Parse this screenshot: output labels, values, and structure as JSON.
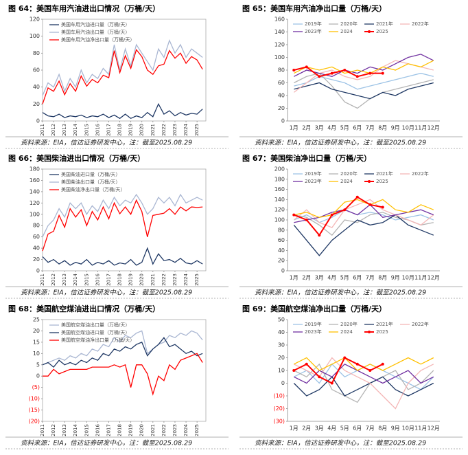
{
  "chart_data": [
    {
      "type": "line",
      "title": "图 64：美国车用汽油进出口情况（万桶/天）",
      "source": "资料来源：EIA，信达证券研发中心，注：截至2025.08.29",
      "x": [
        2011,
        2011.5,
        2012,
        2012.5,
        2013,
        2013.5,
        2014,
        2014.5,
        2015,
        2015.5,
        2016,
        2016.5,
        2017,
        2017.5,
        2018,
        2018.5,
        2019,
        2019.5,
        2020,
        2020.5,
        2021,
        2021.5,
        2022,
        2022.5,
        2023,
        2023.5,
        2024,
        2024.5,
        2025,
        2025.5
      ],
      "xlim": [
        2011,
        2025.8
      ],
      "xticks": [
        2011,
        2012,
        2013,
        2014,
        2015,
        2016,
        2017,
        2018,
        2019,
        2020,
        2021,
        2022,
        2023,
        2024,
        2025
      ],
      "ylim": [
        0,
        120
      ],
      "yticks": [
        0,
        20,
        40,
        60,
        80,
        100,
        120
      ],
      "series": [
        {
          "name": "美国车用汽油进口量（万桶/天）",
          "color": "#1f3864",
          "values": [
            10,
            6,
            5,
            8,
            4,
            6,
            5,
            7,
            4,
            6,
            5,
            8,
            4,
            7,
            3,
            8,
            3,
            6,
            4,
            10,
            5,
            20,
            8,
            12,
            6,
            10,
            7,
            9,
            8,
            14
          ]
        },
        {
          "name": "美国车用汽油出口量（万桶/天）",
          "color": "#a9b6d2",
          "values": [
            30,
            45,
            40,
            55,
            35,
            50,
            40,
            60,
            45,
            55,
            50,
            62,
            55,
            90,
            60,
            85,
            65,
            90,
            80,
            70,
            60,
            85,
            75,
            95,
            80,
            90,
            75,
            85,
            80,
            75
          ]
        },
        {
          "name": "美国车用汽油净出口量（万桶/天）",
          "color": "#ff0000",
          "values": [
            20,
            39,
            35,
            47,
            31,
            44,
            35,
            53,
            41,
            49,
            45,
            54,
            51,
            83,
            57,
            77,
            62,
            84,
            76,
            60,
            55,
            65,
            67,
            83,
            74,
            80,
            68,
            76,
            72,
            61
          ]
        }
      ]
    },
    {
      "type": "line",
      "title": "图 65：美国车用汽油净出口量（万桶/天）",
      "source": "资料来源：EIA，信达证券研发中心，注：截至2025.08.29",
      "categories": [
        "1月",
        "2月",
        "3月",
        "4月",
        "5月",
        "6月",
        "7月",
        "8月",
        "9月",
        "10月",
        "11月",
        "12月"
      ],
      "ylim": [
        0,
        160
      ],
      "yticks": [
        0,
        20,
        40,
        60,
        80,
        100,
        120,
        140,
        160
      ],
      "series": [
        {
          "name": "2019年",
          "color": "#9dc3e6",
          "values": [
            55,
            60,
            70,
            65,
            60,
            50,
            55,
            60,
            65,
            70,
            75,
            70
          ]
        },
        {
          "name": "2020年",
          "color": "#b4b4b4",
          "values": [
            60,
            70,
            75,
            55,
            30,
            20,
            35,
            45,
            50,
            55,
            60,
            65
          ]
        },
        {
          "name": "2021年",
          "color": "#1f3864",
          "values": [
            50,
            55,
            60,
            50,
            45,
            40,
            35,
            45,
            40,
            50,
            55,
            60
          ]
        },
        {
          "name": "2022年",
          "color": "#f4b6b6",
          "values": [
            45,
            60,
            75,
            80,
            70,
            65,
            70,
            85,
            95,
            90,
            85,
            80
          ]
        },
        {
          "name": "2023年",
          "color": "#7030a0",
          "values": [
            70,
            80,
            75,
            70,
            80,
            75,
            85,
            80,
            90,
            100,
            105,
            95
          ]
        },
        {
          "name": "2024",
          "color": "#ffc000",
          "values": [
            75,
            85,
            80,
            85,
            75,
            80,
            75,
            85,
            80,
            90,
            85,
            95
          ]
        },
        {
          "name": "2025",
          "color": "#ff0000",
          "marker": true,
          "values": [
            80,
            85,
            70,
            75,
            80,
            70,
            75,
            75,
            null,
            null,
            null,
            null
          ]
        }
      ]
    },
    {
      "type": "line",
      "title": "图 66：美国柴油进出口情况（万桶/天）",
      "source": "资料来源：EIA，信达证券研发中心，注：截至2025.08.29",
      "x": [
        2011,
        2011.5,
        2012,
        2012.5,
        2013,
        2013.5,
        2014,
        2014.5,
        2015,
        2015.5,
        2016,
        2016.5,
        2017,
        2017.5,
        2018,
        2018.5,
        2019,
        2019.5,
        2020,
        2020.5,
        2021,
        2021.5,
        2022,
        2022.5,
        2023,
        2023.5,
        2024,
        2024.5,
        2025,
        2025.5
      ],
      "xlim": [
        2011,
        2025.8
      ],
      "xticks": [
        2011,
        2012,
        2013,
        2014,
        2015,
        2016,
        2017,
        2018,
        2019,
        2020,
        2021,
        2022,
        2023,
        2024,
        2025
      ],
      "ylim": [
        0,
        180
      ],
      "yticks": [
        0,
        20,
        40,
        60,
        80,
        100,
        120,
        140,
        160,
        180
      ],
      "series": [
        {
          "name": "美国柴油进口量（万桶/天）",
          "color": "#1f3864",
          "values": [
            25,
            15,
            20,
            12,
            18,
            10,
            15,
            12,
            20,
            10,
            15,
            12,
            18,
            10,
            14,
            12,
            20,
            10,
            15,
            40,
            12,
            30,
            18,
            20,
            15,
            22,
            14,
            12,
            18,
            12
          ]
        },
        {
          "name": "美国柴油出口量（万桶/天）",
          "color": "#a9b6d2",
          "values": [
            60,
            80,
            90,
            110,
            95,
            120,
            110,
            120,
            100,
            115,
            105,
            125,
            110,
            130,
            115,
            125,
            120,
            135,
            120,
            100,
            110,
            130,
            120,
            130,
            115,
            135,
            120,
            125,
            130,
            125
          ]
        },
        {
          "name": "美国柴油净出口量（万桶/天）",
          "color": "#ff0000",
          "values": [
            35,
            65,
            70,
            98,
            77,
            110,
            95,
            108,
            80,
            105,
            90,
            113,
            92,
            120,
            101,
            113,
            100,
            125,
            105,
            60,
            98,
            100,
            102,
            110,
            100,
            113,
            106,
            113,
            112,
            113
          ]
        }
      ]
    },
    {
      "type": "line",
      "title": "图 67：美国柴油净出口量（万桶/天）",
      "source": "资料来源：EIA，信达证券研发中心，注：截至2025.08.29",
      "categories": [
        "1月",
        "2月",
        "3月",
        "4月",
        "5月",
        "6月",
        "7月",
        "8月",
        "9月",
        "10月",
        "11月",
        "12月"
      ],
      "ylim": [
        0,
        200
      ],
      "yticks": [
        0,
        20,
        40,
        60,
        80,
        100,
        120,
        140,
        160,
        180,
        200
      ],
      "series": [
        {
          "name": "2019年",
          "color": "#9dc3e6",
          "values": [
            100,
            110,
            95,
            105,
            120,
            110,
            115,
            110,
            100,
            105,
            110,
            100
          ]
        },
        {
          "name": "2020年",
          "color": "#b4b4b4",
          "values": [
            110,
            105,
            90,
            70,
            100,
            95,
            110,
            115,
            105,
            100,
            90,
            95
          ]
        },
        {
          "name": "2021年",
          "color": "#1f3864",
          "values": [
            90,
            60,
            30,
            60,
            80,
            100,
            90,
            95,
            110,
            90,
            80,
            70
          ]
        },
        {
          "name": "2022年",
          "color": "#f4b6b6",
          "values": [
            100,
            120,
            95,
            85,
            120,
            130,
            140,
            120,
            110,
            100,
            90,
            110
          ]
        },
        {
          "name": "2023年",
          "color": "#7030a0",
          "values": [
            95,
            100,
            105,
            115,
            120,
            110,
            130,
            105,
            110,
            115,
            120,
            110
          ]
        },
        {
          "name": "2024",
          "color": "#ffc000",
          "values": [
            110,
            115,
            105,
            110,
            135,
            140,
            130,
            140,
            120,
            115,
            130,
            120
          ]
        },
        {
          "name": "2025",
          "color": "#ff0000",
          "marker": true,
          "values": [
            110,
            100,
            70,
            110,
            120,
            145,
            130,
            125,
            null,
            null,
            null,
            null
          ]
        }
      ]
    },
    {
      "type": "line",
      "title": "图 68：美国航空煤油进出口情况（万桶/天）",
      "source": "资料来源：EIA，信达证券研发中心，注：截至2025.08.29",
      "x": [
        2011,
        2011.5,
        2012,
        2012.5,
        2013,
        2013.5,
        2014,
        2014.5,
        2015,
        2015.5,
        2016,
        2016.5,
        2017,
        2017.5,
        2018,
        2018.5,
        2019,
        2019.5,
        2020,
        2020.5,
        2021,
        2021.5,
        2022,
        2022.5,
        2023,
        2023.5,
        2024,
        2024.5,
        2025,
        2025.5
      ],
      "xlim": [
        2011,
        2025.8
      ],
      "xticks": [
        2011,
        2012,
        2013,
        2014,
        2015,
        2016,
        2017,
        2018,
        2019,
        2020,
        2021,
        2022,
        2023,
        2024,
        2025
      ],
      "ylim": [
        -20,
        25
      ],
      "yticks": [
        {
          "value": -20,
          "label": "(20)"
        },
        {
          "value": -15,
          "label": "(15)"
        },
        {
          "value": -10,
          "label": "(10)"
        },
        {
          "value": -5,
          "label": "(5)"
        },
        0,
        5,
        10,
        15,
        20,
        25
      ],
      "series": [
        {
          "name": "美国航空煤油出口量（万桶/天）",
          "color": "#a9b6d2",
          "values": [
            5,
            6,
            7,
            8,
            7,
            9,
            8,
            10,
            9,
            12,
            11,
            14,
            13,
            17,
            15,
            18,
            17,
            19,
            20,
            10,
            12,
            14,
            15,
            18,
            17,
            19,
            18,
            20,
            19,
            16
          ]
        },
        {
          "name": "美国航空煤油进口量（万桶/天）",
          "color": "#1f3864",
          "values": [
            5,
            6,
            4,
            7,
            5,
            6,
            5,
            7,
            6,
            8,
            7,
            10,
            9,
            12,
            11,
            13,
            12,
            14,
            15,
            9,
            12,
            14,
            17,
            13,
            14,
            12,
            10,
            11,
            9,
            10
          ]
        },
        {
          "name": "美国航空煤油净出口量（万桶/天）",
          "color": "#ff0000",
          "values": [
            0,
            0,
            3,
            1,
            2,
            3,
            3,
            3,
            3,
            4,
            4,
            4,
            4,
            5,
            4,
            5,
            -5,
            5,
            5,
            1,
            -8,
            0,
            -2,
            5,
            3,
            7,
            8,
            9,
            10,
            6
          ]
        }
      ]
    },
    {
      "type": "line",
      "title": "图 69：美国航空煤油净出口量（万桶/天）",
      "source": "资料来源：EIA，信达证券研发中心，注：截至2025.08.29",
      "categories": [
        "1月",
        "2月",
        "3月",
        "4月",
        "5月",
        "6月",
        "7月",
        "8月",
        "9月",
        "10月",
        "11月",
        "12月"
      ],
      "ylim": [
        -30,
        50
      ],
      "yticks": [
        {
          "value": -30,
          "label": "(30)"
        },
        {
          "value": -20,
          "label": "(20)"
        },
        {
          "value": -10,
          "label": "(10)"
        },
        0,
        10,
        20,
        30,
        40,
        50
      ],
      "series": [
        {
          "name": "2019年",
          "color": "#9dc3e6",
          "values": [
            5,
            10,
            0,
            15,
            5,
            10,
            15,
            10,
            5,
            0,
            -5,
            5
          ]
        },
        {
          "name": "2020年",
          "color": "#b4b4b4",
          "values": [
            10,
            5,
            15,
            -5,
            -10,
            -15,
            0,
            5,
            10,
            -5,
            0,
            10
          ]
        },
        {
          "name": "2021年",
          "color": "#1f3864",
          "values": [
            0,
            -10,
            -5,
            5,
            -10,
            -5,
            0,
            5,
            -5,
            -10,
            -5,
            0
          ]
        },
        {
          "name": "2022年",
          "color": "#f4b6b6",
          "values": [
            15,
            10,
            5,
            20,
            10,
            5,
            0,
            -10,
            -20,
            0,
            10,
            15
          ]
        },
        {
          "name": "2023年",
          "color": "#7030a0",
          "values": [
            5,
            0,
            10,
            5,
            15,
            10,
            5,
            0,
            5,
            10,
            0,
            5
          ]
        },
        {
          "name": "2024",
          "color": "#ffc000",
          "values": [
            15,
            20,
            10,
            15,
            20,
            10,
            15,
            10,
            15,
            20,
            15,
            20
          ]
        },
        {
          "name": "2025",
          "color": "#ff0000",
          "marker": true,
          "values": [
            10,
            15,
            5,
            0,
            20,
            15,
            10,
            15,
            null,
            null,
            null,
            null
          ]
        }
      ]
    }
  ]
}
